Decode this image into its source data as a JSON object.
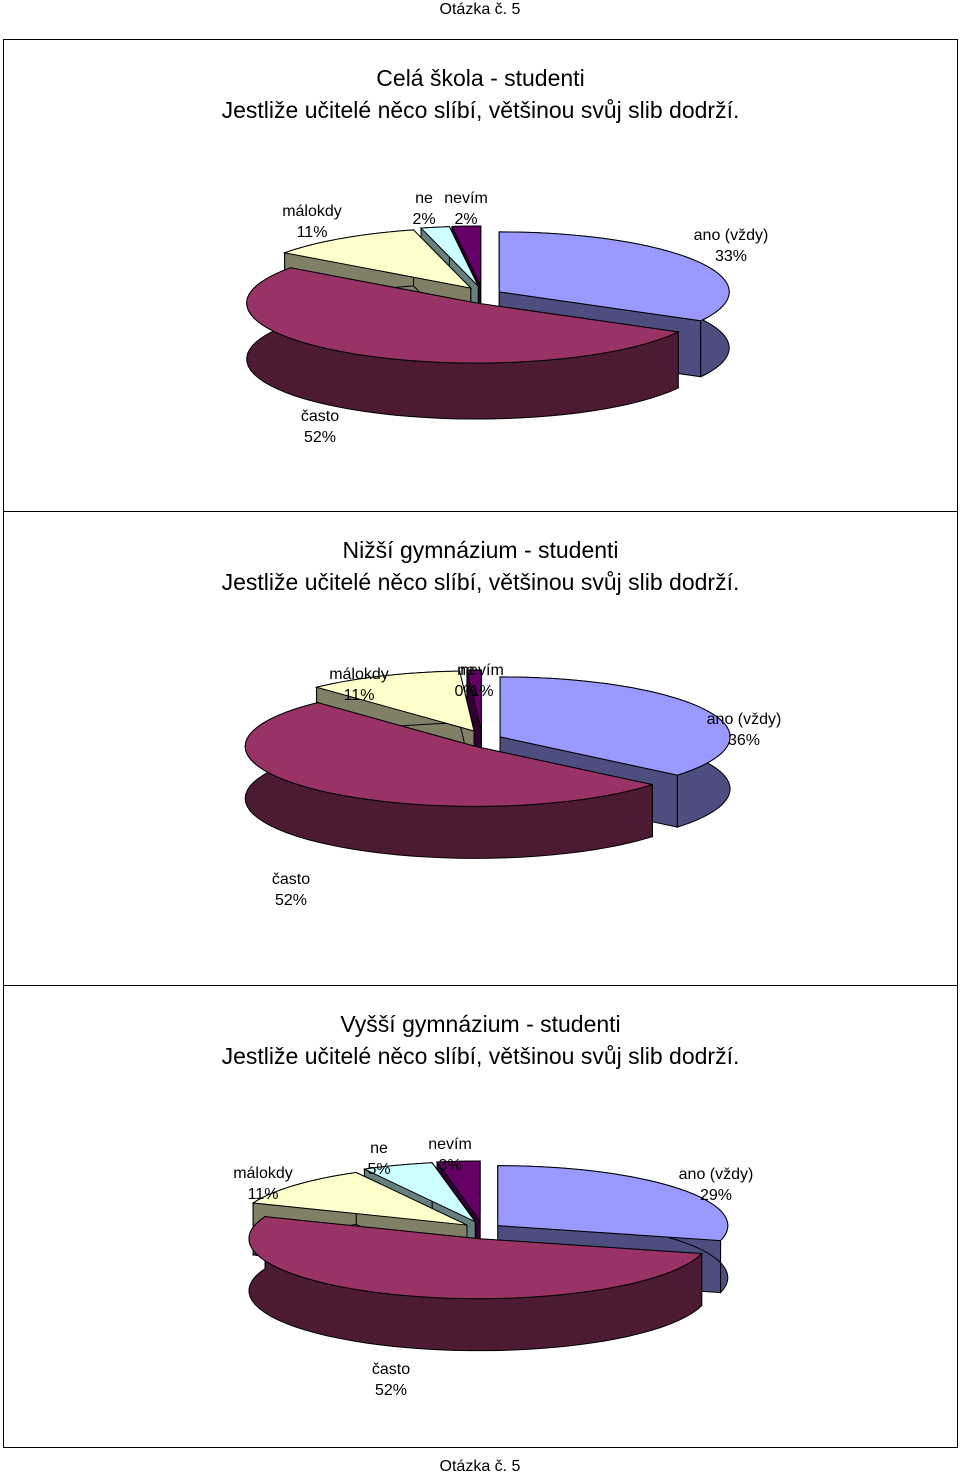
{
  "page": {
    "header": "Otázka č. 5",
    "footer": "Otázka č. 5"
  },
  "colors": {
    "ano": "#9999FF",
    "casto": "#993366",
    "malokdy": "#FFFFCC",
    "ne": "#CCFFFF",
    "nevim": "#660066",
    "outline": "#000000"
  },
  "chart_data": [
    {
      "type": "pie",
      "style": "3d-exploded",
      "title": "Celá škola - studenti",
      "subtitle": "Jestliže učitelé něco slíbí, většinou svůj slib dodrží.",
      "slices": [
        {
          "label": "ano (vždy)",
          "value": 33,
          "display": "33%"
        },
        {
          "label": "často",
          "value": 52,
          "display": "52%"
        },
        {
          "label": "málokdy",
          "value": 11,
          "display": "11%"
        },
        {
          "label": "ne",
          "value": 2,
          "display": "2%"
        },
        {
          "label": "nevím",
          "value": 2,
          "display": "2%"
        }
      ]
    },
    {
      "type": "pie",
      "style": "3d-exploded",
      "title": "Nižší gymnázium - studenti",
      "subtitle": "Jestliže učitelé něco slíbí, většinou svůj slib dodrží.",
      "slices": [
        {
          "label": "ano (vždy)",
          "value": 36,
          "display": "36%"
        },
        {
          "label": "často",
          "value": 52,
          "display": "52%"
        },
        {
          "label": "málokdy",
          "value": 11,
          "display": "11%"
        },
        {
          "label": "ne",
          "value": 0,
          "display": "0%"
        },
        {
          "label": "nevím",
          "value": 1,
          "display": "1%"
        }
      ]
    },
    {
      "type": "pie",
      "style": "3d-exploded",
      "title": "Vyšší gymnázium - studenti",
      "subtitle": "Jestliže učitelé něco slíbí, většinou svůj slib dodrží.",
      "slices": [
        {
          "label": "ano (vždy)",
          "value": 29,
          "display": "29%"
        },
        {
          "label": "často",
          "value": 52,
          "display": "52%"
        },
        {
          "label": "málokdy",
          "value": 11,
          "display": "11%"
        },
        {
          "label": "ne",
          "value": 5,
          "display": "5%"
        },
        {
          "label": "nevím",
          "value": 3,
          "display": "3%"
        }
      ]
    }
  ]
}
